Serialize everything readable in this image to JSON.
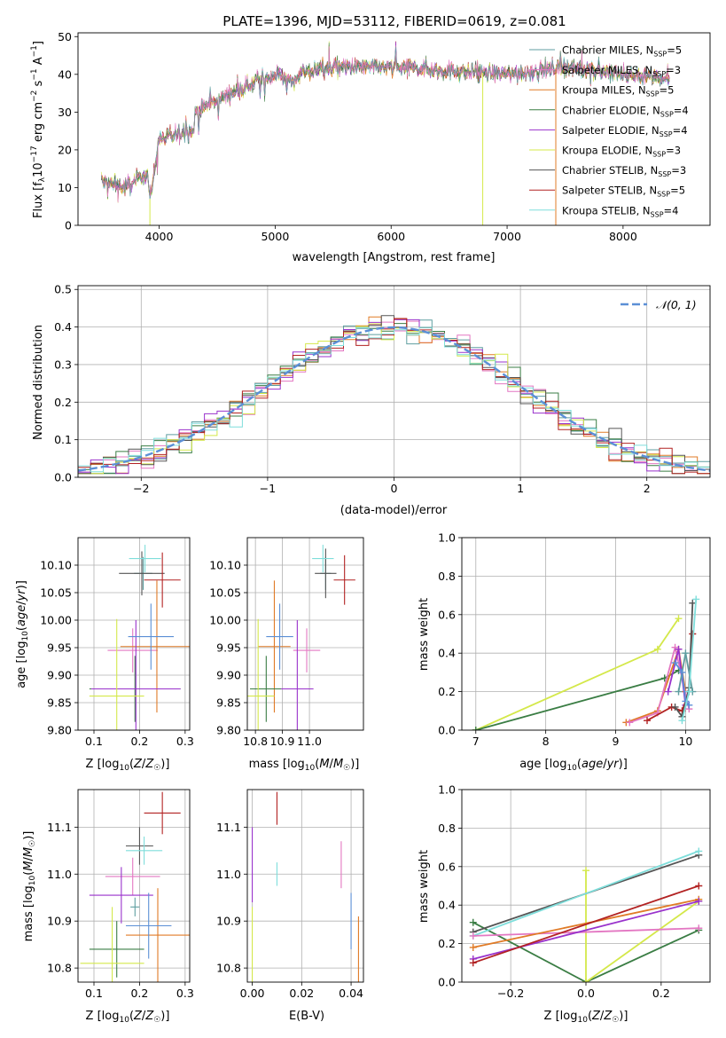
{
  "title": "PLATE=1396, MJD=53112, FIBERID=0619, z=0.081",
  "colors": {
    "Chabrier MILES": "#5f9ea0",
    "Salpeter MILES": "#e377c2",
    "Kroupa MILES": "#e07b27",
    "Chabrier ELODIE": "#3a7d44",
    "Salpeter ELODIE": "#9932cc",
    "Kroupa ELODIE": "#d4e84a",
    "Chabrier STELIB": "#555555",
    "Salpeter STELIB": "#b22222",
    "Kroupa STELIB": "#7fdedb",
    "normal": "#5b8fd6"
  },
  "legend_spectrum": [
    {
      "base": "Chabrier MILES, N",
      "sub": "SSP",
      "tail": "=5"
    },
    {
      "base": "Salpeter MILES, N",
      "sub": "SSP",
      "tail": "=3"
    },
    {
      "base": "Kroupa MILES, N",
      "sub": "SSP",
      "tail": "=5"
    },
    {
      "base": "Chabrier ELODIE, N",
      "sub": "SSP",
      "tail": "=4"
    },
    {
      "base": "Salpeter ELODIE, N",
      "sub": "SSP",
      "tail": "=4"
    },
    {
      "base": "Kroupa ELODIE, N",
      "sub": "SSP",
      "tail": "=3"
    },
    {
      "base": "Chabrier STELIB, N",
      "sub": "SSP",
      "tail": "=3"
    },
    {
      "base": "Salpeter STELIB, N",
      "sub": "SSP",
      "tail": "=5"
    },
    {
      "base": "Kroupa STELIB, N",
      "sub": "SSP",
      "tail": "=4"
    }
  ],
  "chart_data": [
    {
      "id": "spectrum",
      "type": "line",
      "xlabel": "wavelength [Angstrom, rest frame]",
      "ylabel": "Flux [f_λ 10^-17 erg cm^-2 s^-1 A^-1]",
      "xlim": [
        3300,
        8750
      ],
      "ylim": [
        0,
        51
      ],
      "xticks": [
        4000,
        5000,
        6000,
        7000,
        8000
      ],
      "yticks": [
        0,
        10,
        20,
        30,
        40,
        50
      ],
      "continuum_x": [
        3500,
        3700,
        3900,
        3920,
        4000,
        4300,
        4310,
        4600,
        5000,
        5170,
        5200,
        5500,
        6000,
        6500,
        7000,
        7500,
        8000,
        8400
      ],
      "continuum_y": [
        12,
        10,
        14,
        7,
        23,
        25,
        30,
        35,
        40,
        38,
        40,
        42,
        42,
        41,
        40,
        42,
        40,
        39
      ],
      "x_range": [
        3500,
        8400
      ],
      "grid": false,
      "legend_loc": "right"
    },
    {
      "id": "residuals",
      "type": "line",
      "xlabel": "(data-model)/error",
      "ylabel": "Normed distribution",
      "xlim": [
        -2.5,
        2.5
      ],
      "ylim": [
        0,
        0.51
      ],
      "xticks": [
        -2,
        -1,
        0,
        1,
        2
      ],
      "yticks": [
        0.0,
        0.1,
        0.2,
        0.3,
        0.4,
        0.5
      ],
      "series_normal": {
        "name": "N(0,1)",
        "mu": 0,
        "sigma": 1
      },
      "hist_bin_width": 0.1,
      "grid": true,
      "legend_loc": "upper right"
    },
    {
      "id": "age_vs_Z",
      "type": "scatter",
      "xlabel": "Z [log10(Z/Z☉)]",
      "ylabel": "age [log10(age/yr)]",
      "xlim": [
        0.065,
        0.31
      ],
      "ylim": [
        9.8,
        10.15
      ],
      "xticks": [
        0.1,
        0.2,
        0.3
      ],
      "yticks": [
        9.8,
        9.85,
        9.9,
        9.95,
        10.0,
        10.05,
        10.1
      ],
      "grid": true,
      "points": [
        {
          "model": "Chabrier MILES",
          "x": 0.208,
          "y": 10.085,
          "xerr": 0.02,
          "yerr": 0.03
        },
        {
          "model": "Salpeter MILES",
          "x": 0.185,
          "y": 9.945,
          "xerr": 0.055,
          "yerr": 0.04
        },
        {
          "model": "Kroupa MILES",
          "x": 0.238,
          "y": 9.952,
          "xerr": 0.08,
          "yerr": 0.12
        },
        {
          "model": "Chabrier ELODIE",
          "x": 0.19,
          "y": 9.875,
          "xerr": 0.1,
          "yerr": 0.06
        },
        {
          "model": "Salpeter ELODIE",
          "x": 0.192,
          "y": 9.875,
          "xerr": 0.098,
          "yerr": 0.125
        },
        {
          "model": "Kroupa ELODIE",
          "x": 0.15,
          "y": 9.862,
          "xerr": 0.06,
          "yerr": 0.14
        },
        {
          "model": "Chabrier STELIB",
          "x": 0.205,
          "y": 10.085,
          "xerr": 0.05,
          "yerr": 0.04
        },
        {
          "model": "Salpeter STELIB",
          "x": 0.25,
          "y": 10.073,
          "xerr": 0.04,
          "yerr": 0.05
        },
        {
          "model": "Kroupa STELIB",
          "x": 0.212,
          "y": 10.112,
          "xerr": 0.035,
          "yerr": 0.025
        },
        {
          "model": "normal",
          "x": 0.225,
          "y": 9.97,
          "xerr": 0.05,
          "yerr": 0.06
        }
      ]
    },
    {
      "id": "age_vs_mass",
      "type": "scatter",
      "xlabel": "mass [log10(M/M☉)]",
      "ylabel": "",
      "xlim": [
        10.77,
        11.2
      ],
      "ylim": [
        9.8,
        10.15
      ],
      "xticks": [
        10.8,
        10.9,
        11.0
      ],
      "yticks": [
        9.8,
        9.85,
        9.9,
        9.95,
        10.0,
        10.05,
        10.1
      ],
      "grid": true,
      "points": [
        {
          "model": "Chabrier MILES",
          "x": 11.06,
          "y": 10.085,
          "xerr": 0.02,
          "yerr": 0.03
        },
        {
          "model": "Salpeter MILES",
          "x": 10.99,
          "y": 9.945,
          "xerr": 0.05,
          "yerr": 0.04
        },
        {
          "model": "Kroupa MILES",
          "x": 10.87,
          "y": 9.952,
          "xerr": 0.06,
          "yerr": 0.12
        },
        {
          "model": "Chabrier ELODIE",
          "x": 10.84,
          "y": 9.875,
          "xerr": 0.06,
          "yerr": 0.06
        },
        {
          "model": "Salpeter ELODIE",
          "x": 10.955,
          "y": 9.875,
          "xerr": 0.06,
          "yerr": 0.125
        },
        {
          "model": "Kroupa ELODIE",
          "x": 10.81,
          "y": 9.862,
          "xerr": 0.06,
          "yerr": 0.14
        },
        {
          "model": "Chabrier STELIB",
          "x": 11.06,
          "y": 10.085,
          "xerr": 0.04,
          "yerr": 0.045
        },
        {
          "model": "Salpeter STELIB",
          "x": 11.13,
          "y": 10.073,
          "xerr": 0.04,
          "yerr": 0.045
        },
        {
          "model": "Kroupa STELIB",
          "x": 11.05,
          "y": 10.112,
          "xerr": 0.04,
          "yerr": 0.025
        },
        {
          "model": "normal",
          "x": 10.89,
          "y": 9.97,
          "xerr": 0.05,
          "yerr": 0.06
        }
      ]
    },
    {
      "id": "weight_vs_age",
      "type": "line",
      "xlabel": "age [log10(age/yr)]",
      "ylabel": "mass weight",
      "xlim": [
        6.8,
        10.35
      ],
      "ylim": [
        0,
        1
      ],
      "xticks": [
        7,
        8,
        9,
        10
      ],
      "yticks": [
        0.0,
        0.2,
        0.4,
        0.6,
        0.8,
        1.0
      ],
      "grid": true,
      "series": [
        {
          "model": "Kroupa ELODIE",
          "x": [
            7.0,
            9.6,
            9.9
          ],
          "y": [
            0.0,
            0.42,
            0.58
          ]
        },
        {
          "model": "Chabrier ELODIE",
          "x": [
            7.0,
            9.7,
            9.9
          ],
          "y": [
            0.0,
            0.27,
            0.31
          ]
        },
        {
          "model": "Kroupa MILES",
          "x": [
            9.15,
            9.6,
            9.9,
            10.0
          ],
          "y": [
            0.04,
            0.1,
            0.42,
            0.2
          ]
        },
        {
          "model": "Salpeter MILES",
          "x": [
            9.2,
            9.6,
            9.85,
            10.05
          ],
          "y": [
            0.04,
            0.09,
            0.43,
            0.11
          ]
        },
        {
          "model": "Salpeter ELODIE",
          "x": [
            9.75,
            9.9,
            10.0
          ],
          "y": [
            0.2,
            0.42,
            0.13
          ]
        },
        {
          "model": "Salpeter STELIB",
          "x": [
            9.45,
            9.8,
            9.95,
            10.05,
            10.1
          ],
          "y": [
            0.05,
            0.12,
            0.1,
            0.2,
            0.5
          ]
        },
        {
          "model": "Chabrier STELIB",
          "x": [
            9.85,
            9.95,
            10.05,
            10.1
          ],
          "y": [
            0.12,
            0.07,
            0.22,
            0.66
          ]
        },
        {
          "model": "Chabrier MILES",
          "x": [
            9.9,
            10.0,
            10.1
          ],
          "y": [
            0.2,
            0.4,
            0.2
          ]
        },
        {
          "model": "normal",
          "x": [
            9.85,
            9.95,
            10.0,
            10.05
          ],
          "y": [
            0.35,
            0.3,
            0.15,
            0.13
          ]
        },
        {
          "model": "Kroupa STELIB",
          "x": [
            9.95,
            10.05,
            10.15
          ],
          "y": [
            0.05,
            0.2,
            0.68
          ]
        }
      ]
    },
    {
      "id": "mass_vs_Z",
      "type": "scatter",
      "xlabel": "Z [log10(Z/Z☉)]",
      "ylabel": "mass [log10(M/M☉)]",
      "xlim": [
        0.065,
        0.31
      ],
      "ylim": [
        10.77,
        11.18
      ],
      "xticks": [
        0.1,
        0.2,
        0.3
      ],
      "yticks": [
        10.8,
        10.9,
        11.0,
        11.1
      ],
      "grid": true,
      "points": [
        {
          "model": "Chabrier MILES",
          "x": 0.19,
          "y": 10.93,
          "xerr": 0.01,
          "yerr": 0.02
        },
        {
          "model": "Salpeter MILES",
          "x": 0.185,
          "y": 10.995,
          "xerr": 0.06,
          "yerr": 0.04
        },
        {
          "model": "Kroupa MILES",
          "x": 0.24,
          "y": 10.87,
          "xerr": 0.07,
          "yerr": 0.1
        },
        {
          "model": "Chabrier ELODIE",
          "x": 0.15,
          "y": 10.84,
          "xerr": 0.06,
          "yerr": 0.06
        },
        {
          "model": "Salpeter ELODIE",
          "x": 0.16,
          "y": 10.955,
          "xerr": 0.07,
          "yerr": 0.06
        },
        {
          "model": "Kroupa ELODIE",
          "x": 0.14,
          "y": 10.81,
          "xerr": 0.07,
          "yerr": 0.12
        },
        {
          "model": "Chabrier STELIB",
          "x": 0.2,
          "y": 11.06,
          "xerr": 0.03,
          "yerr": 0.04
        },
        {
          "model": "Salpeter STELIB",
          "x": 0.25,
          "y": 11.13,
          "xerr": 0.04,
          "yerr": 0.045
        },
        {
          "model": "Kroupa STELIB",
          "x": 0.21,
          "y": 11.05,
          "xerr": 0.04,
          "yerr": 0.03
        },
        {
          "model": "normal",
          "x": 0.22,
          "y": 10.89,
          "xerr": 0.05,
          "yerr": 0.07
        }
      ]
    },
    {
      "id": "mass_vs_EBV",
      "type": "scatter",
      "xlabel": "E(B-V)",
      "ylabel": "",
      "xlim": [
        -0.002,
        0.045
      ],
      "ylim": [
        10.77,
        11.18
      ],
      "xticks": [
        0.0,
        0.02,
        0.04
      ],
      "yticks": [
        10.8,
        10.9,
        11.0,
        11.1
      ],
      "grid": true,
      "points": [
        {
          "model": "Salpeter STELIB",
          "x": 0.01,
          "y": 11.14,
          "xerr": 0,
          "yerr": 0.035
        },
        {
          "model": "Kroupa STELIB",
          "x": 0.01,
          "y": 11.0,
          "xerr": 0,
          "yerr": 0.025
        },
        {
          "model": "Salpeter ELODIE",
          "x": 0.0,
          "y": 11.02,
          "xerr": 0,
          "yerr": 0.08
        },
        {
          "model": "Kroupa ELODIE",
          "x": 0.0,
          "y": 10.85,
          "xerr": 0,
          "yerr": 0.08
        },
        {
          "model": "Salpeter MILES",
          "x": 0.036,
          "y": 11.02,
          "xerr": 0,
          "yerr": 0.05
        },
        {
          "model": "normal",
          "x": 0.04,
          "y": 10.9,
          "xerr": 0,
          "yerr": 0.06
        },
        {
          "model": "Kroupa MILES",
          "x": 0.043,
          "y": 10.84,
          "xerr": 0,
          "yerr": 0.07
        }
      ]
    },
    {
      "id": "weight_vs_Z",
      "type": "line",
      "xlabel": "Z [log10(Z/Z☉)]",
      "ylabel": "mass weight",
      "xlim": [
        -0.33,
        0.33
      ],
      "ylim": [
        0,
        1
      ],
      "xticks": [
        -0.2,
        0.0,
        0.2
      ],
      "yticks": [
        0.0,
        0.2,
        0.4,
        0.6,
        0.8,
        1.0
      ],
      "grid": true,
      "series": [
        {
          "model": "Chabrier ELODIE",
          "x": [
            -0.3,
            0.0,
            0.3
          ],
          "y": [
            0.31,
            0.0,
            0.27
          ]
        },
        {
          "model": "Kroupa ELODIE",
          "x": [
            0.0,
            0.0,
            0.3
          ],
          "y": [
            0.58,
            0.0,
            0.42
          ]
        },
        {
          "model": "Chabrier STELIB",
          "x": [
            -0.3,
            0.3
          ],
          "y": [
            0.26,
            0.66
          ]
        },
        {
          "model": "Kroupa STELIB",
          "x": [
            -0.3,
            0.3
          ],
          "y": [
            0.24,
            0.68
          ]
        },
        {
          "model": "Salpeter MILES",
          "x": [
            -0.3,
            0.3
          ],
          "y": [
            0.24,
            0.28
          ]
        },
        {
          "model": "Kroupa MILES",
          "x": [
            -0.3,
            0.3
          ],
          "y": [
            0.18,
            0.43
          ]
        },
        {
          "model": "Salpeter ELODIE",
          "x": [
            -0.3,
            0.3
          ],
          "y": [
            0.12,
            0.42
          ]
        },
        {
          "model": "Salpeter STELIB",
          "x": [
            -0.3,
            0.3
          ],
          "y": [
            0.1,
            0.5
          ]
        }
      ]
    }
  ]
}
